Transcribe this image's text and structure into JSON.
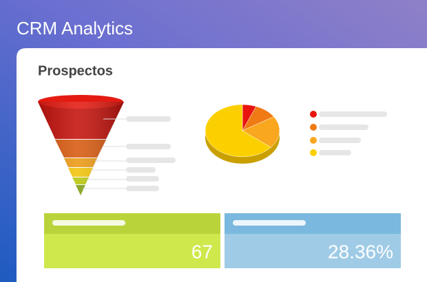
{
  "header": {
    "title": "CRM Analytics"
  },
  "card": {
    "title": "Prospectos"
  },
  "pie": {
    "type": "pie",
    "values": [
      6,
      10,
      20,
      64
    ],
    "colors": [
      "#e8150f",
      "#f07a14",
      "#f9a71e",
      "#fcd000"
    ]
  },
  "kpis": [
    {
      "value": "67"
    },
    {
      "value": "28.36%"
    }
  ]
}
